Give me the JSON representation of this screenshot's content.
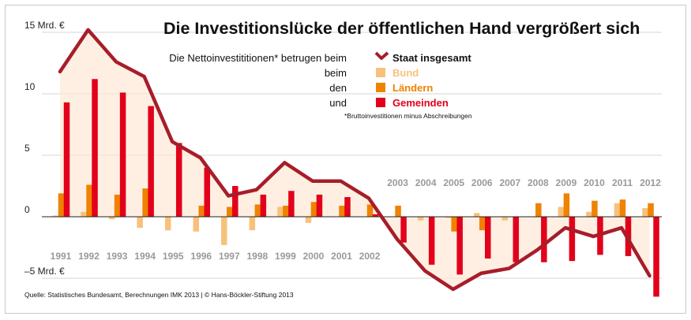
{
  "chart_data": {
    "type": "bar",
    "title": "Die Investitionslücke der öffentlichen Hand vergrößert sich",
    "subtitle": "Die Nettoinvestititionen* betrugen beim",
    "ylim": [
      -6,
      15
    ],
    "y_ticks": [
      {
        "value": 15,
        "label": "15 Mrd. €"
      },
      {
        "value": 10,
        "label": "10"
      },
      {
        "value": 5,
        "label": "5"
      },
      {
        "value": 0,
        "label": "0"
      },
      {
        "value": -5,
        "label": "–5 Mrd. €"
      }
    ],
    "categories": [
      "1991",
      "1992",
      "1993",
      "1994",
      "1995",
      "1996",
      "1997",
      "1998",
      "1999",
      "2000",
      "2001",
      "2002",
      "2003",
      "2004",
      "2005",
      "2006",
      "2007",
      "2008",
      "2009",
      "2010",
      "2011",
      "2012"
    ],
    "series": [
      {
        "name": "Bund",
        "prefix": "beim",
        "type": "bar",
        "color": "#f8c17b",
        "values": [
          0.1,
          0.4,
          -0.2,
          -0.9,
          -1.1,
          -1.2,
          -2.3,
          -1.1,
          0.8,
          -0.5,
          0.0,
          0.0,
          0.0,
          -0.3,
          -0.1,
          0.3,
          -0.3,
          0.0,
          0.8,
          0.4,
          1.1,
          0.7
        ]
      },
      {
        "name": "Ländern",
        "prefix": "den",
        "type": "bar",
        "color": "#ef8200",
        "values": [
          1.9,
          2.6,
          1.8,
          2.3,
          0.0,
          0.9,
          0.8,
          1.0,
          0.9,
          1.2,
          0.9,
          1.0,
          0.9,
          0.0,
          -1.2,
          -1.1,
          0.0,
          1.1,
          1.9,
          1.3,
          1.4,
          1.1
        ]
      },
      {
        "name": "Gemeinden",
        "prefix": "und",
        "type": "bar",
        "color": "#e2001a",
        "values": [
          9.3,
          11.2,
          10.1,
          9.0,
          6.0,
          4.0,
          2.5,
          1.8,
          2.1,
          1.8,
          1.6,
          0.2,
          -2.1,
          -3.9,
          -4.7,
          -3.4,
          -3.7,
          -3.7,
          -3.6,
          -3.1,
          -3.2,
          -6.5
        ]
      },
      {
        "name": "Staat insgesamt",
        "type": "line",
        "color": "#a71d2a",
        "values": [
          11.8,
          15.2,
          12.6,
          11.4,
          6.1,
          4.8,
          1.7,
          2.2,
          4.4,
          2.9,
          2.9,
          1.5,
          -1.8,
          -4.4,
          -5.9,
          -4.6,
          -4.2,
          -2.7,
          -0.9,
          -1.6,
          -0.9,
          -4.8
        ]
      }
    ],
    "footnote": "*Bruttoinvestitionen minus Abschreibungen",
    "source": "Quelle: Statistisches Bundesamt, Berechnungen IMK 2013 | © Hans-Böckler-Stiftung 2013",
    "grid": true,
    "legend_position": "top-right"
  }
}
